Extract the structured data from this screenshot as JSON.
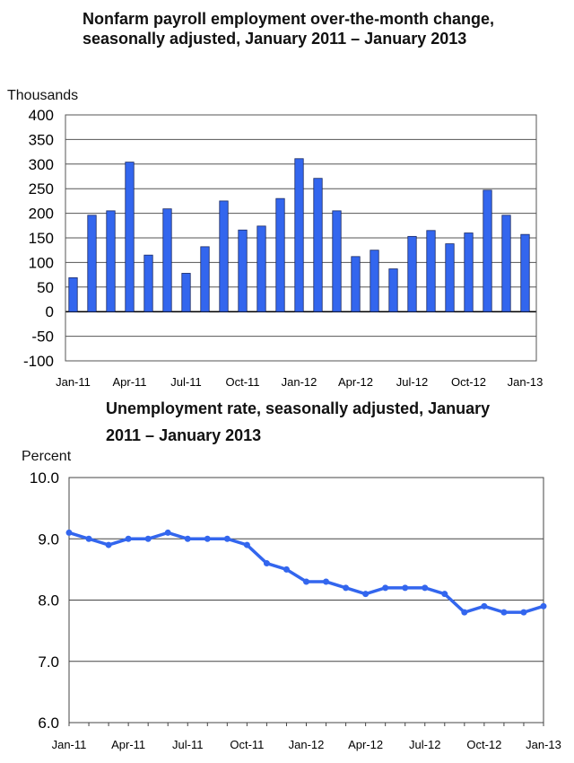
{
  "chart_data": [
    {
      "type": "bar",
      "title": "Nonfarm payroll employment over-the-month change, seasonally adjusted, January 2011 – January 2013",
      "ylabel": "Thousands",
      "ylim": [
        -100,
        400
      ],
      "yticks": [
        400,
        350,
        300,
        250,
        200,
        150,
        100,
        50,
        0,
        -50,
        -100
      ],
      "grid": true,
      "tick_labels": [
        "Jan-11",
        "Apr-11",
        "Jul-11",
        "Oct-11",
        "Jan-12",
        "Apr-12",
        "Jul-12",
        "Oct-12",
        "Jan-13"
      ],
      "categories": [
        "Jan-11",
        "Feb-11",
        "Mar-11",
        "Apr-11",
        "May-11",
        "Jun-11",
        "Jul-11",
        "Aug-11",
        "Sep-11",
        "Oct-11",
        "Nov-11",
        "Dec-11",
        "Jan-12",
        "Feb-12",
        "Mar-12",
        "Apr-12",
        "May-12",
        "Jun-12",
        "Jul-12",
        "Aug-12",
        "Sep-12",
        "Oct-12",
        "Nov-12",
        "Dec-12",
        "Jan-13"
      ],
      "values": [
        69,
        196,
        205,
        304,
        115,
        209,
        78,
        132,
        225,
        166,
        174,
        230,
        311,
        271,
        205,
        112,
        125,
        87,
        153,
        165,
        138,
        160,
        247,
        196,
        157
      ],
      "color": "#3366ee"
    },
    {
      "type": "line",
      "title": "Unemployment rate, seasonally adjusted, January 2011 – January 2013",
      "ylabel": "Percent",
      "ylim": [
        6.0,
        10.0
      ],
      "yticks": [
        "10.0",
        "9.0",
        "8.0",
        "7.0",
        "6.0"
      ],
      "grid": true,
      "tick_labels": [
        "Jan-11",
        "Apr-11",
        "Jul-11",
        "Oct-11",
        "Jan-12",
        "Apr-12",
        "Jul-12",
        "Oct-12",
        "Jan-13"
      ],
      "values": [
        9.1,
        9.0,
        8.9,
        9.0,
        9.0,
        9.1,
        9.0,
        9.0,
        9.0,
        8.9,
        8.6,
        8.5,
        8.3,
        8.3,
        8.2,
        8.1,
        8.2,
        8.2,
        8.2,
        8.1,
        7.8,
        7.9,
        7.8,
        7.8,
        7.9
      ],
      "color": "#3366ee"
    }
  ]
}
